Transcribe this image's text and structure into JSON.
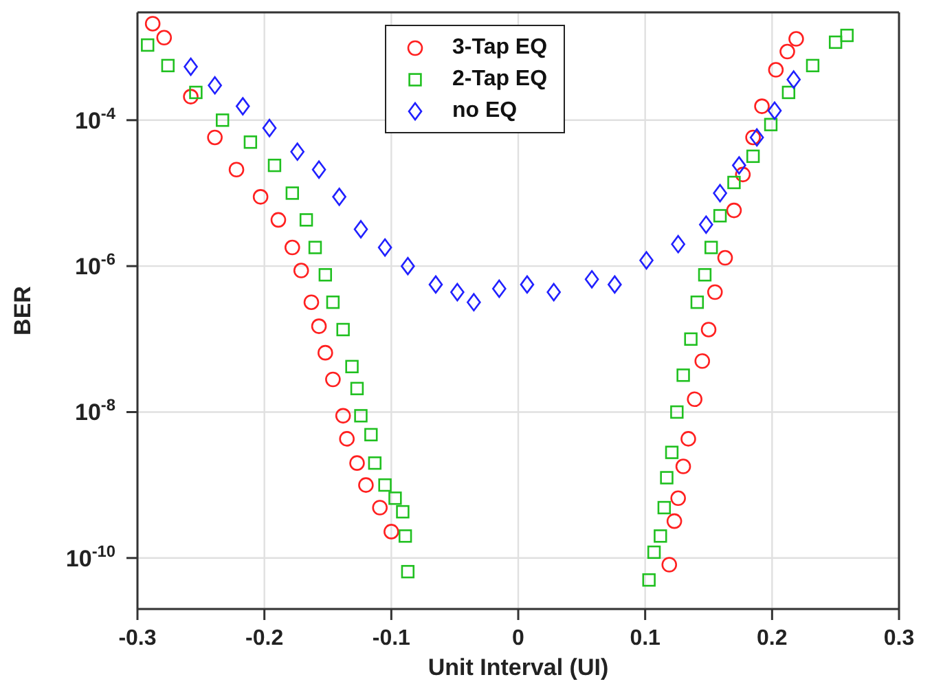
{
  "chart_data": {
    "type": "scatter",
    "xlabel": "Unit Interval (UI)",
    "ylabel": "BER",
    "log": "y",
    "grid": true,
    "legend": "top",
    "xlim": [
      -0.3,
      0.3
    ],
    "xticks": [
      -0.3,
      -0.2,
      -0.1,
      0,
      0.1,
      0.2,
      0.3
    ],
    "ylim": [
      2e-11,
      0.003
    ],
    "yticks": [
      {
        "value": 1e-10,
        "label": "10$^{-10}$"
      },
      {
        "value": 1e-08,
        "label": "10$^{-8}$"
      },
      {
        "value": 1e-06,
        "label": "10$^{-6}$"
      },
      {
        "value": 0.0001,
        "label": "10$^{-4}$"
      }
    ],
    "series": [
      {
        "name": "3-Tap EQ",
        "color": "#ff2020",
        "marker": "circle",
        "x": [
          -0.288,
          -0.279,
          -0.258,
          -0.239,
          -0.222,
          -0.203,
          -0.189,
          -0.178,
          -0.171,
          -0.163,
          -0.157,
          -0.152,
          -0.146,
          -0.138,
          -0.135,
          -0.127,
          -0.12,
          -0.109,
          -0.1,
          0.119,
          0.123,
          0.126,
          0.13,
          0.134,
          0.139,
          0.145,
          0.15,
          0.155,
          0.163,
          0.17,
          0.177,
          0.185,
          0.192,
          0.203,
          0.212,
          0.219
        ],
        "values": [
          0.0021,
          0.00135,
          0.00021,
          5.8e-05,
          2.1e-05,
          8.9e-06,
          4.3e-06,
          1.8e-06,
          8.7e-07,
          3.2e-07,
          1.5e-07,
          6.5e-08,
          2.8e-08,
          8.9e-09,
          4.3e-09,
          2e-09,
          1e-09,
          4.9e-10,
          2.3e-10,
          8.1e-11,
          3.2e-10,
          6.6e-10,
          1.8e-09,
          4.3e-09,
          1.5e-08,
          5e-08,
          1.35e-07,
          4.4e-07,
          1.3e-06,
          5.8e-06,
          1.8e-05,
          5.8e-05,
          0.000155,
          0.00049,
          0.00087,
          0.0013
        ]
      },
      {
        "name": "2-Tap EQ",
        "color": "#20c020",
        "marker": "square",
        "x": [
          -0.292,
          -0.276,
          -0.254,
          -0.233,
          -0.211,
          -0.192,
          -0.178,
          -0.167,
          -0.16,
          -0.152,
          -0.146,
          -0.138,
          -0.131,
          -0.127,
          -0.124,
          -0.116,
          -0.113,
          -0.105,
          -0.097,
          -0.091,
          -0.089,
          -0.087,
          0.103,
          0.107,
          0.112,
          0.115,
          0.117,
          0.121,
          0.125,
          0.13,
          0.136,
          0.141,
          0.147,
          0.152,
          0.159,
          0.17,
          0.185,
          0.199,
          0.213,
          0.232,
          0.25,
          0.259
        ],
        "values": [
          0.00107,
          0.00056,
          0.00024,
          0.0001,
          5e-05,
          2.4e-05,
          1e-05,
          4.3e-06,
          1.8e-06,
          7.6e-07,
          3.2e-07,
          1.35e-07,
          4.2e-08,
          2.1e-08,
          8.9e-09,
          4.9e-09,
          2e-09,
          1e-09,
          6.6e-10,
          4.3e-10,
          2e-10,
          6.5e-11,
          5e-11,
          1.2e-10,
          2e-10,
          4.9e-10,
          1.26e-09,
          2.8e-09,
          1e-08,
          3.2e-08,
          1e-07,
          3.2e-07,
          7.6e-07,
          1.8e-06,
          4.9e-06,
          1.4e-05,
          3.2e-05,
          8.7e-05,
          0.00024,
          0.00056,
          0.00117,
          0.00145
        ]
      },
      {
        "name": "no EQ",
        "color": "#2020ff",
        "marker": "diamond",
        "x": [
          -0.258,
          -0.239,
          -0.217,
          -0.196,
          -0.174,
          -0.157,
          -0.141,
          -0.124,
          -0.105,
          -0.087,
          -0.065,
          -0.048,
          -0.035,
          -0.015,
          0.007,
          0.028,
          0.058,
          0.076,
          0.101,
          0.126,
          0.148,
          0.159,
          0.174,
          0.188,
          0.202,
          0.217
        ],
        "values": [
          0.00054,
          0.0003,
          0.000155,
          7.8e-05,
          3.7e-05,
          2.1e-05,
          8.9e-06,
          3.2e-06,
          1.8e-06,
          1e-06,
          5.6e-07,
          4.4e-07,
          3.2e-07,
          4.9e-07,
          5.6e-07,
          4.4e-07,
          6.6e-07,
          5.6e-07,
          1.2e-06,
          2e-06,
          3.7e-06,
          1e-05,
          2.4e-05,
          5.8e-05,
          0.000135,
          0.00036
        ]
      }
    ]
  }
}
